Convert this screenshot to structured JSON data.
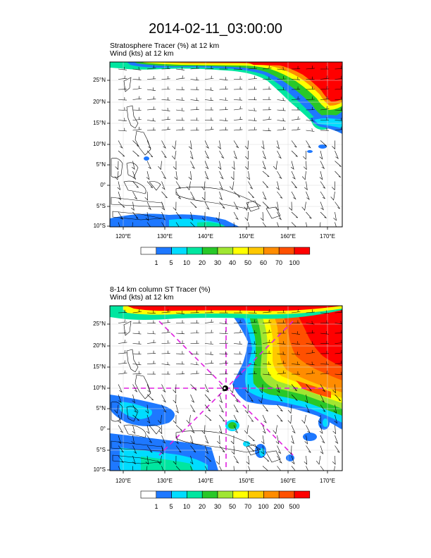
{
  "title": "2014-02-11_03:00:00",
  "panels": [
    {
      "subtitle_line1": "Stratosphere Tracer   (%)     at   12 km",
      "subtitle_line2": "Wind   (kts)      at   12 km",
      "lat_labels": [
        "25°N",
        "20°N",
        "15°N",
        "10°N",
        "5°N",
        "0°",
        "5°S",
        "10°S"
      ],
      "lon_labels": [
        "120°E",
        "130°E",
        "140°E",
        "150°E",
        "160°E",
        "170°E"
      ],
      "colorbar_labels": [
        "1",
        "5",
        "10",
        "20",
        "30",
        "40",
        "50",
        "60",
        "70",
        "100"
      ]
    },
    {
      "subtitle_line1": "8-14 km column ST Tracer    (%)",
      "subtitle_line2": "Wind   (kts)      at   12 km",
      "lat_labels": [
        "25°N",
        "20°N",
        "15°N",
        "10°N",
        "5°N",
        "0°",
        "5°S",
        "10°S"
      ],
      "lon_labels": [
        "120°E",
        "130°E",
        "140°E",
        "150°E",
        "160°E",
        "170°E"
      ],
      "colorbar_labels": [
        "1",
        "5",
        "10",
        "20",
        "30",
        "50",
        "70",
        "100",
        "200",
        "500"
      ]
    }
  ],
  "colorbar_colors": [
    "#ffffff",
    "#1e78ff",
    "#00dcff",
    "#00e6a0",
    "#28c828",
    "#a0e632",
    "#ffff00",
    "#ffc800",
    "#ff8c00",
    "#ff5000",
    "#ff0000"
  ],
  "map": {
    "lon_range": [
      116,
      174
    ],
    "lat_range": [
      -10,
      29
    ],
    "center_marker_lon": 145,
    "center_marker_lat": 10
  }
}
